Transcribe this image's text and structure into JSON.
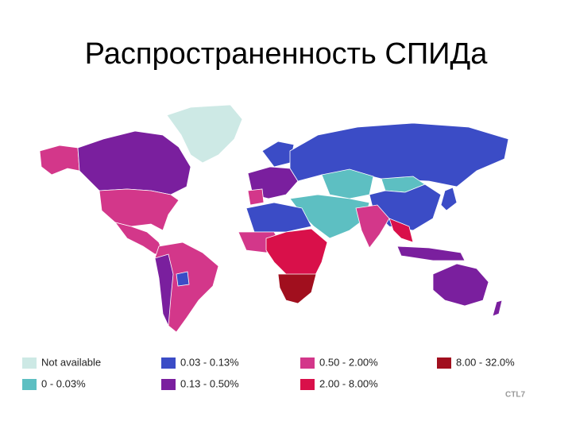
{
  "title": "Распространенность СПИДа",
  "legend": [
    {
      "label": "Not available",
      "color": "#cde9e5"
    },
    {
      "label": "0 - 0.03%",
      "color": "#5dbfc2"
    },
    {
      "label": "0.03 - 0.13%",
      "color": "#3b4cc6"
    },
    {
      "label": "0.13 - 0.50%",
      "color": "#7a1f9e"
    },
    {
      "label": "0.50 - 2.00%",
      "color": "#d3378a"
    },
    {
      "label": "2.00 - 8.00%",
      "color": "#d9104a"
    },
    {
      "label": "8.00 - 32.0%",
      "color": "#a10f1e"
    }
  ],
  "logo": "CTL7"
}
